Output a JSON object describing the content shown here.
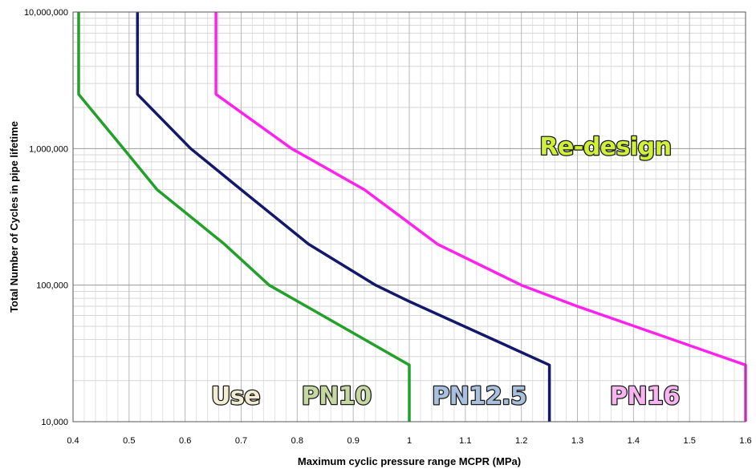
{
  "chart_data": {
    "type": "line",
    "xlabel": "Maximum cyclic pressure range MCPR (MPa)",
    "ylabel": "Total Number of Cycles in pipe lifetime",
    "xlim": [
      0.4,
      1.6
    ],
    "ylim": [
      10000,
      10000000
    ],
    "yscale": "log",
    "grid": true,
    "x_ticks": [
      0.4,
      0.5,
      0.6,
      0.7,
      0.8,
      0.9,
      1.0,
      1.1,
      1.2,
      1.3,
      1.4,
      1.5,
      1.6
    ],
    "x_tick_labels": [
      "0.4",
      "0.5",
      "0.6",
      "0.7",
      "0.8",
      "0.9",
      "1",
      "1.1",
      "1.2",
      "1.3",
      "1.4",
      "1.5",
      "1.6"
    ],
    "y_ticks": [
      10000,
      100000,
      1000000,
      10000000
    ],
    "y_tick_labels": [
      "10,000",
      "100,000",
      "1,000,000",
      "10,000,000"
    ],
    "series": [
      {
        "color": "#22a02a",
        "points": [
          [
            0.41,
            10000000
          ],
          [
            0.41,
            2500000
          ],
          [
            0.49,
            1000000
          ],
          [
            0.55,
            500000
          ],
          [
            0.67,
            200000
          ],
          [
            0.75,
            100000
          ],
          [
            0.83,
            65000
          ],
          [
            1.0,
            26000
          ],
          [
            1.0,
            10000
          ]
        ]
      },
      {
        "color": "#12186a",
        "points": [
          [
            0.515,
            10000000
          ],
          [
            0.515,
            2500000
          ],
          [
            0.61,
            1000000
          ],
          [
            0.7,
            500000
          ],
          [
            0.82,
            200000
          ],
          [
            0.94,
            100000
          ],
          [
            1.0,
            76000
          ],
          [
            1.25,
            26000
          ],
          [
            1.25,
            10000
          ]
        ]
      },
      {
        "color": "#ff22ee",
        "points": [
          [
            0.655,
            10000000
          ],
          [
            0.655,
            2500000
          ],
          [
            0.79,
            1000000
          ],
          [
            0.92,
            500000
          ],
          [
            1.05,
            200000
          ],
          [
            1.2,
            100000
          ],
          [
            1.3,
            70000
          ],
          [
            1.6,
            26000
          ],
          [
            1.6,
            10000
          ]
        ]
      }
    ],
    "annotations": [
      {
        "text": "Re-design",
        "x": 1.35,
        "y": 900000,
        "color": "#cfef3a"
      },
      {
        "text": "Use",
        "x": 0.69,
        "y": 13500,
        "color": "#f2ecd2"
      },
      {
        "text": "PN10",
        "x": 0.87,
        "y": 13500,
        "color": "#c6d8a2"
      },
      {
        "text": "PN12.5",
        "x": 1.125,
        "y": 13500,
        "color": "#a8c0dd"
      },
      {
        "text": "PN16",
        "x": 1.42,
        "y": 13500,
        "color": "#f7b4ef"
      }
    ]
  }
}
